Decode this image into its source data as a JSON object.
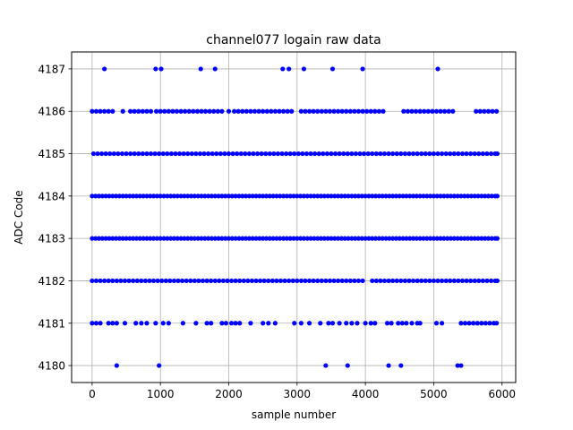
{
  "chart_data": {
    "type": "scatter",
    "title": "channel077 logain raw data",
    "xlabel": "sample number",
    "ylabel": "ADC Code",
    "xlim": [
      -300,
      6200
    ],
    "ylim": [
      4179.6,
      4187.4
    ],
    "xticks": [
      0,
      1000,
      2000,
      3000,
      4000,
      5000,
      6000
    ],
    "xtick_labels": [
      "0",
      "1000",
      "2000",
      "3000",
      "4000",
      "5000",
      "6000"
    ],
    "yticks": [
      4180,
      4181,
      4182,
      4183,
      4184,
      4185,
      4186,
      4187
    ],
    "ytick_labels": [
      "4180",
      "4181",
      "4182",
      "4183",
      "4184",
      "4185",
      "4186",
      "4187"
    ],
    "grid": true,
    "marker_color": "#0000ff",
    "series": [
      {
        "levels": [
          {
            "y": 4187,
            "x": [
              180,
              930,
              1010,
              1590,
              1800,
              2790,
              2880,
              3100,
              3520,
              3960,
              5060
            ]
          },
          {
            "y": 4186,
            "x": [
              0,
              60,
              120,
              180,
              240,
              300,
              450,
              560,
              620,
              680,
              740,
              800,
              860,
              940,
              1000,
              1060,
              1120,
              1180,
              1240,
              1300,
              1360,
              1420,
              1480,
              1540,
              1600,
              1660,
              1720,
              1780,
              1840,
              1900,
              2000,
              2080,
              2140,
              2200,
              2260,
              2320,
              2380,
              2440,
              2500,
              2560,
              2620,
              2680,
              2740,
              2800,
              2860,
              2920,
              3060,
              3120,
              3180,
              3240,
              3300,
              3360,
              3420,
              3480,
              3540,
              3600,
              3660,
              3720,
              3780,
              3840,
              3900,
              3960,
              4020,
              4080,
              4140,
              4200,
              4260,
              4560,
              4620,
              4680,
              4740,
              4800,
              4860,
              4920,
              4980,
              5040,
              5100,
              5160,
              5220,
              5280,
              5620,
              5680,
              5740,
              5800,
              5860,
              5920
            ]
          },
          {
            "y": 4185,
            "x": [
              20,
              80,
              140,
              200,
              260,
              320,
              380,
              440,
              500,
              560,
              620,
              680,
              740,
              800,
              860,
              920,
              980,
              1040,
              1100,
              1160,
              1220,
              1280,
              1340,
              1400,
              1460,
              1520,
              1580,
              1640,
              1700,
              1760,
              1820,
              1880,
              1940,
              2000,
              2060,
              2120,
              2180,
              2240,
              2300,
              2360,
              2420,
              2480,
              2540,
              2600,
              2660,
              2720,
              2780,
              2840,
              2900,
              2960,
              3020,
              3080,
              3140,
              3200,
              3260,
              3320,
              3380,
              3440,
              3500,
              3560,
              3620,
              3680,
              3740,
              3800,
              3860,
              3920,
              3980,
              4040,
              4100,
              4160,
              4220,
              4280,
              4340,
              4400,
              4460,
              4520,
              4580,
              4640,
              4700,
              4760,
              4820,
              4880,
              4940,
              5000,
              5060,
              5120,
              5180,
              5240,
              5300,
              5360,
              5420,
              5480,
              5540,
              5600,
              5660,
              5720,
              5780,
              5840,
              5900,
              5930
            ]
          },
          {
            "y": 4184,
            "x": [
              0,
              50,
              100,
              150,
              200,
              250,
              300,
              350,
              400,
              450,
              500,
              550,
              600,
              650,
              700,
              750,
              800,
              850,
              900,
              950,
              1000,
              1050,
              1100,
              1150,
              1200,
              1250,
              1300,
              1350,
              1400,
              1450,
              1500,
              1550,
              1600,
              1650,
              1700,
              1750,
              1800,
              1850,
              1900,
              1950,
              2000,
              2050,
              2100,
              2150,
              2200,
              2250,
              2300,
              2350,
              2400,
              2450,
              2500,
              2550,
              2600,
              2650,
              2700,
              2750,
              2800,
              2850,
              2900,
              2950,
              3000,
              3050,
              3100,
              3150,
              3200,
              3250,
              3300,
              3350,
              3400,
              3450,
              3500,
              3550,
              3600,
              3650,
              3700,
              3750,
              3800,
              3850,
              3900,
              3950,
              4000,
              4050,
              4100,
              4150,
              4200,
              4250,
              4300,
              4350,
              4400,
              4450,
              4500,
              4550,
              4600,
              4650,
              4700,
              4750,
              4800,
              4850,
              4900,
              4950,
              5000,
              5050,
              5100,
              5150,
              5200,
              5250,
              5300,
              5350,
              5400,
              5450,
              5500,
              5550,
              5600,
              5650,
              5700,
              5750,
              5800,
              5850,
              5900,
              5930
            ]
          },
          {
            "y": 4183,
            "x": [
              0,
              50,
              100,
              150,
              200,
              250,
              300,
              350,
              400,
              450,
              500,
              550,
              600,
              650,
              700,
              750,
              800,
              850,
              900,
              950,
              1000,
              1050,
              1100,
              1150,
              1200,
              1250,
              1300,
              1350,
              1400,
              1450,
              1500,
              1550,
              1600,
              1650,
              1700,
              1750,
              1800,
              1850,
              1900,
              1950,
              2000,
              2050,
              2100,
              2150,
              2200,
              2250,
              2300,
              2350,
              2400,
              2450,
              2500,
              2550,
              2600,
              2650,
              2700,
              2750,
              2800,
              2850,
              2900,
              2950,
              3000,
              3050,
              3100,
              3150,
              3200,
              3250,
              3300,
              3350,
              3400,
              3450,
              3500,
              3550,
              3600,
              3650,
              3700,
              3750,
              3800,
              3850,
              3900,
              3950,
              4000,
              4050,
              4100,
              4150,
              4200,
              4250,
              4300,
              4350,
              4400,
              4450,
              4500,
              4550,
              4600,
              4650,
              4700,
              4750,
              4800,
              4850,
              4900,
              4950,
              5000,
              5050,
              5100,
              5150,
              5200,
              5250,
              5300,
              5350,
              5400,
              5450,
              5500,
              5550,
              5600,
              5650,
              5700,
              5750,
              5800,
              5850,
              5900,
              5930
            ]
          },
          {
            "y": 4182,
            "x": [
              0,
              60,
              120,
              180,
              240,
              300,
              360,
              420,
              480,
              540,
              600,
              660,
              720,
              780,
              840,
              900,
              960,
              1020,
              1080,
              1140,
              1200,
              1260,
              1320,
              1380,
              1440,
              1500,
              1560,
              1620,
              1680,
              1740,
              1800,
              1860,
              1920,
              1980,
              2040,
              2100,
              2160,
              2220,
              2280,
              2340,
              2400,
              2460,
              2520,
              2580,
              2640,
              2700,
              2760,
              2820,
              2880,
              2940,
              3000,
              3060,
              3120,
              3180,
              3240,
              3300,
              3360,
              3420,
              3480,
              3540,
              3600,
              3660,
              3720,
              3780,
              3840,
              3900,
              3960,
              4100,
              4160,
              4220,
              4280,
              4340,
              4400,
              4460,
              4520,
              4580,
              4640,
              4700,
              4760,
              4820,
              4880,
              4940,
              5000,
              5060,
              5120,
              5180,
              5240,
              5300,
              5360,
              5420,
              5480,
              5540,
              5600,
              5660,
              5720,
              5780,
              5840,
              5900,
              5930
            ]
          },
          {
            "y": 4181,
            "x": [
              0,
              60,
              120,
              240,
              300,
              360,
              480,
              640,
              720,
              800,
              930,
              1040,
              1120,
              1330,
              1520,
              1680,
              1740,
              1900,
              1960,
              2040,
              2100,
              2160,
              2320,
              2500,
              2580,
              2680,
              2960,
              3060,
              3180,
              3340,
              3460,
              3520,
              3620,
              3720,
              3800,
              3880,
              4000,
              4080,
              4140,
              4320,
              4380,
              4480,
              4540,
              4600,
              4680,
              4760,
              4800,
              5040,
              5120,
              5400,
              5460,
              5520,
              5580,
              5640,
              5700,
              5760,
              5820,
              5880,
              5920
            ]
          },
          {
            "y": 4180,
            "x": [
              360,
              980,
              3420,
              3740,
              4340,
              4520,
              5350,
              5400
            ]
          }
        ]
      }
    ]
  }
}
